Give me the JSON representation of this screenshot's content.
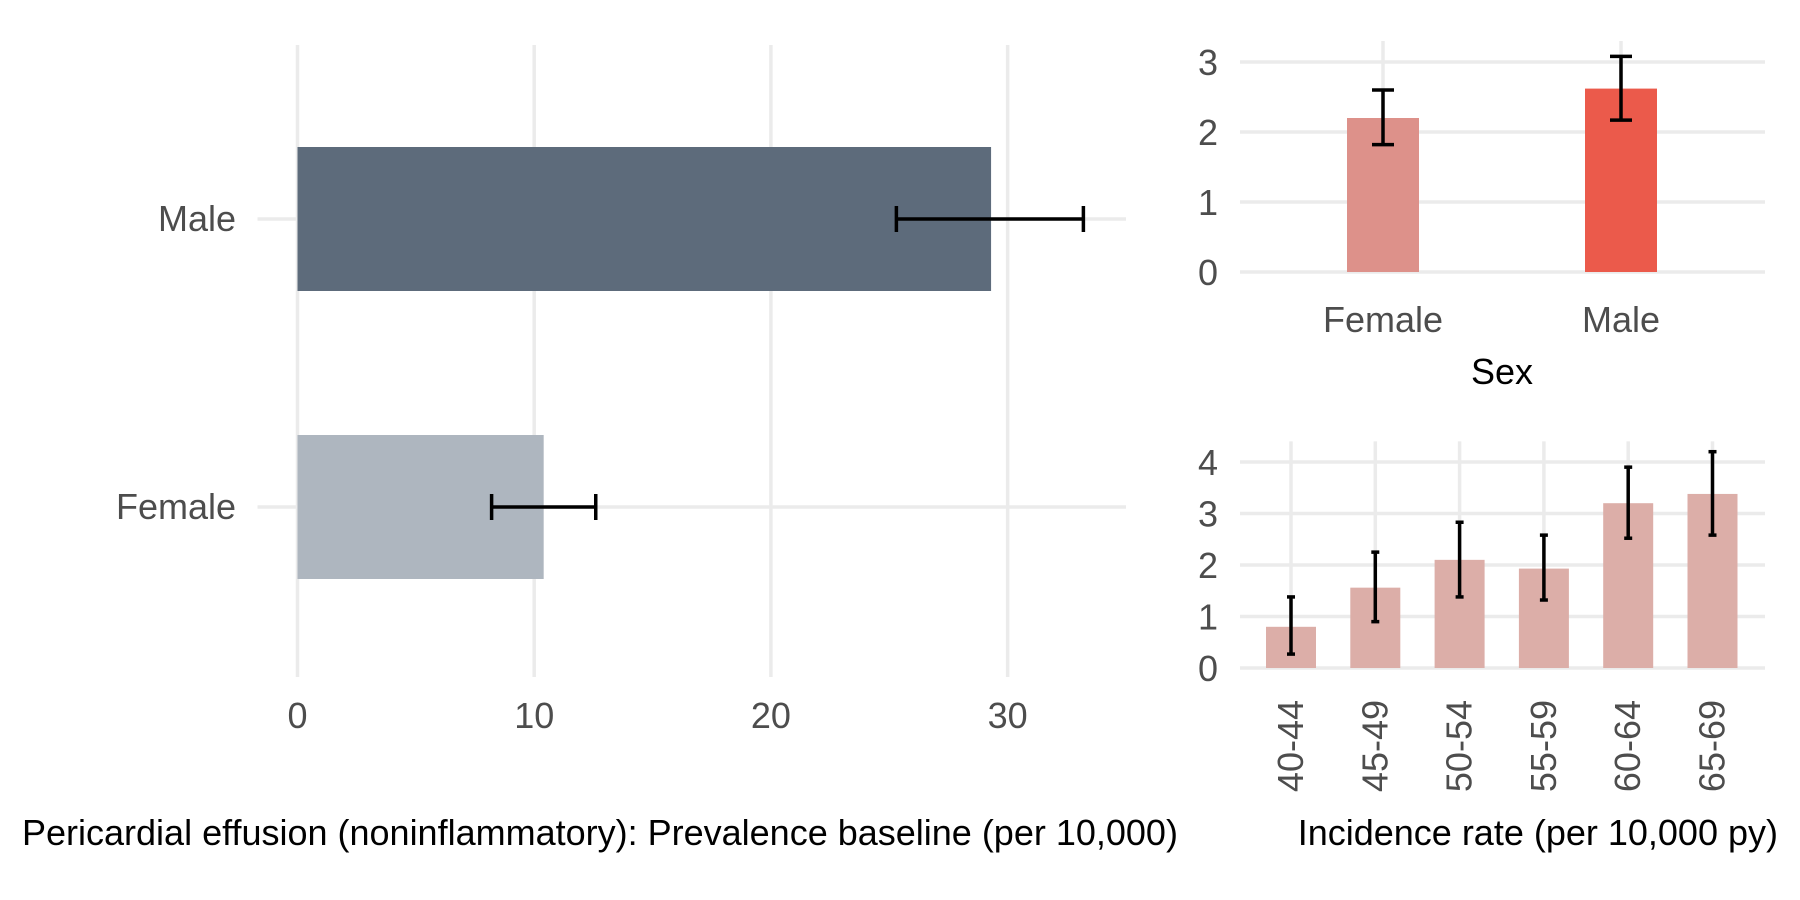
{
  "chart_data": [
    {
      "type": "bar",
      "orientation": "horizontal",
      "categories": [
        "Female",
        "Male"
      ],
      "values": [
        10.4,
        29.3
      ],
      "error_low": [
        8.2,
        25.3
      ],
      "error_high": [
        12.6,
        33.2
      ],
      "colors": [
        "#aeb6bf",
        "#5d6b7b"
      ],
      "xlabel": "Pericardial effusion (noninflammatory): Prevalence baseline (per 10,000)",
      "xticks": [
        "0",
        "10",
        "20",
        "30"
      ],
      "xlim": [
        0,
        35
      ],
      "grid": true
    },
    {
      "type": "bar",
      "categories": [
        "Female",
        "Male"
      ],
      "values": [
        2.2,
        2.62
      ],
      "error_low": [
        1.82,
        2.17
      ],
      "error_high": [
        2.6,
        3.08
      ],
      "colors": [
        "#dd918a",
        "#eb5a4b"
      ],
      "xlabel": "Sex",
      "yticks": [
        "0",
        "1",
        "2",
        "3"
      ],
      "ylim": [
        0,
        3.3
      ],
      "grid": true
    },
    {
      "type": "bar",
      "categories": [
        "40-44",
        "45-49",
        "50-54",
        "55-59",
        "60-64",
        "65-69"
      ],
      "values": [
        0.8,
        1.56,
        2.1,
        1.93,
        3.2,
        3.38
      ],
      "error_low": [
        0.27,
        0.9,
        1.38,
        1.32,
        2.52,
        2.58
      ],
      "error_high": [
        1.38,
        2.25,
        2.83,
        2.58,
        3.9,
        4.2
      ],
      "colors": [
        "#dcaea8"
      ],
      "xlabel": "Incidence rate (per 10,000 py)",
      "yticks": [
        "0",
        "1",
        "2",
        "3",
        "4"
      ],
      "ylim": [
        0,
        4.4
      ],
      "grid": true
    }
  ]
}
